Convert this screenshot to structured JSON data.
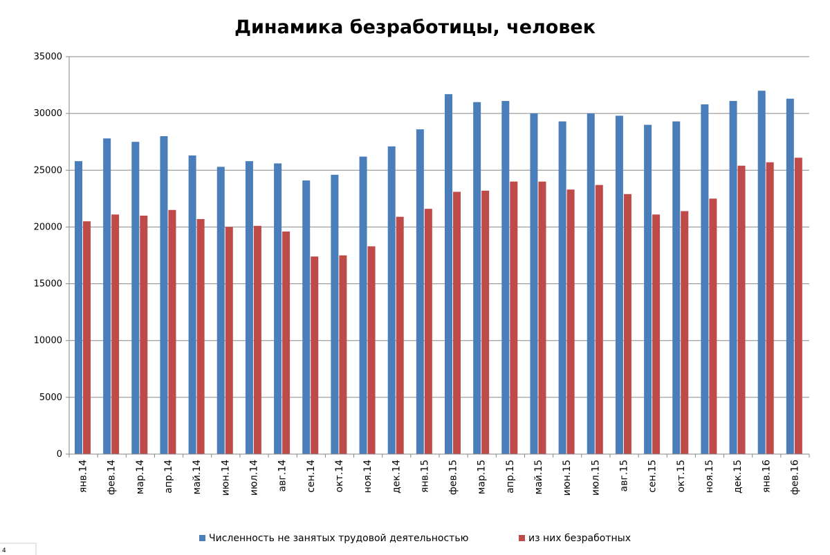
{
  "chart_data": {
    "type": "bar",
    "title": "Динамика безработицы, человек",
    "categories": [
      "янв.14",
      "фев.14",
      "мар.14",
      "апр.14",
      "май.14",
      "июн.14",
      "июл.14",
      "авг.14",
      "сен.14",
      "окт.14",
      "ноя.14",
      "дек.14",
      "янв.15",
      "фев.15",
      "мар.15",
      "апр.15",
      "май.15",
      "июн.15",
      "июл.15",
      "авг.15",
      "сен.15",
      "окт.15",
      "ноя.15",
      "дек.15",
      "янв.16",
      "фев.16"
    ],
    "series": [
      {
        "name": "Численность не занятых трудовой деятельностью",
        "color": "#4a7ebb",
        "values": [
          25800,
          27800,
          27500,
          28000,
          26300,
          25300,
          25800,
          25600,
          24100,
          24600,
          26200,
          27100,
          28600,
          31700,
          31000,
          31100,
          30000,
          29300,
          30000,
          29800,
          29000,
          29300,
          30800,
          31100,
          32000,
          31300
        ]
      },
      {
        "name": "из них безработных",
        "color": "#be4b48",
        "values": [
          20500,
          21100,
          21000,
          21500,
          20700,
          20000,
          20100,
          19600,
          17400,
          17500,
          18300,
          20900,
          21600,
          23100,
          23200,
          24000,
          24000,
          23300,
          23700,
          22900,
          21100,
          21400,
          22500,
          25400,
          25700,
          26100
        ]
      }
    ],
    "ylim": [
      0,
      35000
    ],
    "yticks": [
      "0",
      "5000",
      "10000",
      "15000",
      "20000",
      "25000",
      "30000",
      "35000"
    ],
    "grid": true,
    "legend_position": "bottom"
  },
  "corner_mark": "4"
}
